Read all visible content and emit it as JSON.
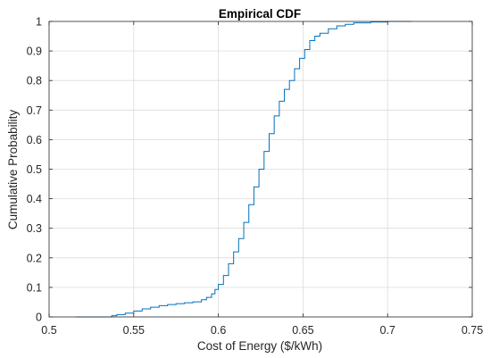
{
  "chart_data": {
    "type": "line",
    "title": "Empirical CDF",
    "xlabel": "Cost of Energy ($/kWh)",
    "ylabel": "Cumulative Probability",
    "xlim": [
      0.5,
      0.75
    ],
    "ylim": [
      0,
      1
    ],
    "grid": true,
    "xticks": [
      0.5,
      0.55,
      0.6,
      0.65,
      0.7,
      0.75
    ],
    "xtick_labels": [
      "0.5",
      "0.55",
      "0.6",
      "0.65",
      "0.7",
      "0.75"
    ],
    "yticks": [
      0,
      0.1,
      0.2,
      0.3,
      0.4,
      0.5,
      0.6,
      0.7,
      0.8,
      0.9,
      1
    ],
    "ytick_labels": [
      "0",
      "0.1",
      "0.2",
      "0.3",
      "0.4",
      "0.5",
      "0.6",
      "0.7",
      "0.8",
      "0.9",
      "1"
    ],
    "series": [
      {
        "color": "#0072bd",
        "x": [
          0.516,
          0.535,
          0.537,
          0.54,
          0.545,
          0.55,
          0.555,
          0.56,
          0.565,
          0.57,
          0.575,
          0.58,
          0.585,
          0.59,
          0.593,
          0.596,
          0.598,
          0.6,
          0.603,
          0.606,
          0.609,
          0.612,
          0.615,
          0.618,
          0.621,
          0.624,
          0.627,
          0.63,
          0.633,
          0.636,
          0.639,
          0.642,
          0.645,
          0.648,
          0.651,
          0.654,
          0.657,
          0.66,
          0.665,
          0.67,
          0.675,
          0.68,
          0.69,
          0.7,
          0.714
        ],
        "y": [
          0.0,
          0.0,
          0.004,
          0.008,
          0.013,
          0.02,
          0.027,
          0.033,
          0.038,
          0.042,
          0.045,
          0.048,
          0.051,
          0.058,
          0.066,
          0.078,
          0.093,
          0.11,
          0.14,
          0.18,
          0.22,
          0.265,
          0.32,
          0.38,
          0.44,
          0.5,
          0.56,
          0.62,
          0.68,
          0.73,
          0.77,
          0.8,
          0.84,
          0.875,
          0.905,
          0.935,
          0.95,
          0.96,
          0.975,
          0.985,
          0.99,
          0.995,
          0.998,
          1.0,
          1.0
        ]
      }
    ]
  }
}
